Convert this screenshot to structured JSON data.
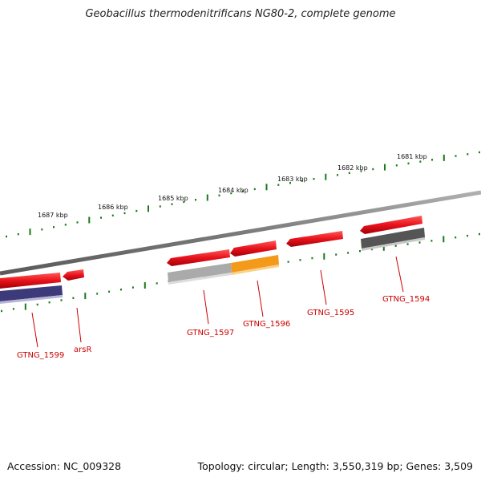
{
  "title": "Geobacillus thermodenitrificans NG80-2, complete genome",
  "accession": "Accession: NC_009328",
  "summary": "Topology: circular; Length: 3,550,319 bp; Genes: 3,509",
  "scale_labels": [
    "1681 kbp",
    "1682 kbp",
    "1683 kbp",
    "1684 kbp",
    "1685 kbp",
    "1686 kbp",
    "1687 kbp"
  ],
  "gene_labels": [
    "GTNG_1594",
    "GTNG_1595",
    "GTNG_1596",
    "GTNG_1597",
    "GTNG_1599",
    "arsR"
  ],
  "colors": {
    "gene_red": "#e8121b",
    "backbone_gray": "#808080",
    "tick_green": "#1a7a1a",
    "label_red": "#cc0000",
    "rna_purple": "#3d3a7a",
    "feature_orange": "#f39a1a",
    "feature_light_gray": "#c0c0c0",
    "feature_dark_gray": "#555555"
  }
}
